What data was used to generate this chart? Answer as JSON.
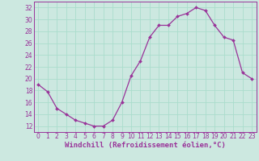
{
  "x": [
    0,
    1,
    2,
    3,
    4,
    5,
    6,
    7,
    8,
    9,
    10,
    11,
    12,
    13,
    14,
    15,
    16,
    17,
    18,
    19,
    20,
    21,
    22,
    23
  ],
  "y": [
    19,
    17.8,
    15,
    14,
    13,
    12.5,
    12,
    12,
    13,
    16,
    20.5,
    23,
    27,
    29,
    29,
    30.5,
    31,
    32,
    31.5,
    29,
    27,
    26.5,
    21,
    20
  ],
  "line_color": "#993399",
  "marker": "D",
  "marker_size": 2.0,
  "linewidth": 0.9,
  "xlabel": "Windchill (Refroidissement éolien,°C)",
  "xlabel_fontsize": 6.5,
  "xlim": [
    -0.5,
    23.5
  ],
  "ylim": [
    11,
    33
  ],
  "yticks": [
    12,
    14,
    16,
    18,
    20,
    22,
    24,
    26,
    28,
    30,
    32
  ],
  "xticks": [
    0,
    1,
    2,
    3,
    4,
    5,
    6,
    7,
    8,
    9,
    10,
    11,
    12,
    13,
    14,
    15,
    16,
    17,
    18,
    19,
    20,
    21,
    22,
    23
  ],
  "grid_color": "#aaddcc",
  "background_color": "#cce8e0",
  "tick_fontsize": 5.5,
  "tick_color": "#993399",
  "spine_color": "#993399"
}
